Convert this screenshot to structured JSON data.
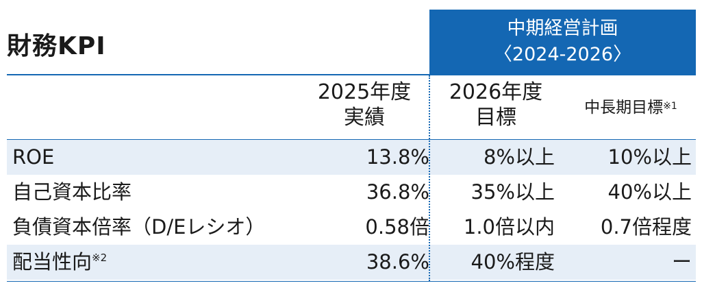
{
  "title": "財務KPI",
  "plan_header": {
    "line1": "中期経営計画",
    "line2": "〈2024-2026〉"
  },
  "columns": {
    "actual_2025": {
      "line1": "2025年度",
      "line2": "実績"
    },
    "target_2026": {
      "line1": "2026年度",
      "line2": "目標"
    },
    "long_term": {
      "label": "中長期目標",
      "note": "※1"
    }
  },
  "rows": [
    {
      "label": "ROE",
      "note": "",
      "actual_2025": "13.8%",
      "target_2026": "8%以上",
      "long_term": "10%以上"
    },
    {
      "label": "自己資本比率",
      "note": "",
      "actual_2025": "36.8%",
      "target_2026": "35%以上",
      "long_term": "40%以上"
    },
    {
      "label": "負債資本倍率（D/Eレシオ）",
      "note": "",
      "actual_2025": "0.58倍",
      "target_2026": "1.0倍以内",
      "long_term": "0.7倍程度"
    },
    {
      "label": "配当性向",
      "note": "※2",
      "actual_2025": "38.6%",
      "target_2026": "40%程度",
      "long_term": "ー"
    }
  ],
  "colors": {
    "accent": "#1467b3",
    "row_shade": "#e6eef7"
  }
}
